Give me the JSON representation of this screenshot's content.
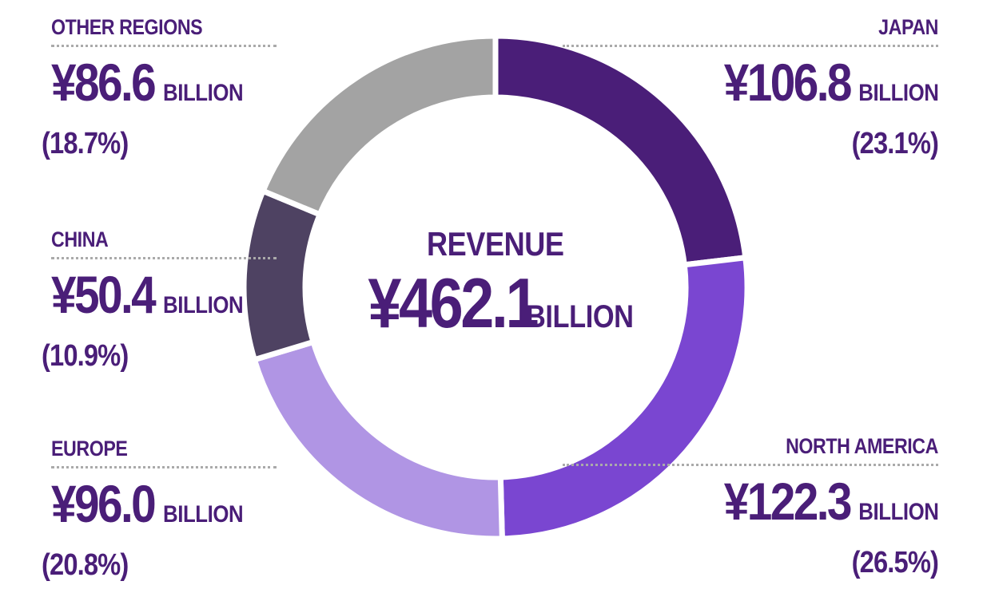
{
  "chart_data": {
    "type": "pie",
    "style": "donut",
    "center_label": "REVENUE",
    "total": {
      "value": "¥462.1",
      "unit": "BILLION"
    },
    "slices": [
      {
        "name": "JAPAN",
        "value": 106.8,
        "value_label": "¥106.8",
        "unit": "BILLION",
        "percent": "(23.1%)",
        "color": "#4a1e78"
      },
      {
        "name": "NORTH AMERICA",
        "value": 122.3,
        "value_label": "¥122.3",
        "unit": "BILLION",
        "percent": "(26.5%)",
        "color": "#7a46d1"
      },
      {
        "name": "EUROPE",
        "value": 96.0,
        "value_label": "¥96.0",
        "unit": "BILLION",
        "percent": "(20.8%)",
        "color": "#b095e4"
      },
      {
        "name": "CHINA",
        "value": 50.4,
        "value_label": "¥50.4",
        "unit": "BILLION",
        "percent": "(10.9%)",
        "color": "#4e4262"
      },
      {
        "name": "OTHER REGIONS",
        "value": 86.6,
        "value_label": "¥86.6",
        "unit": "BILLION",
        "percent": "(18.7%)",
        "color": "#a3a3a3"
      }
    ]
  },
  "colors": {
    "text": "#4a1e78",
    "separator": "#ffffff",
    "rule": "#aaaaaa"
  }
}
